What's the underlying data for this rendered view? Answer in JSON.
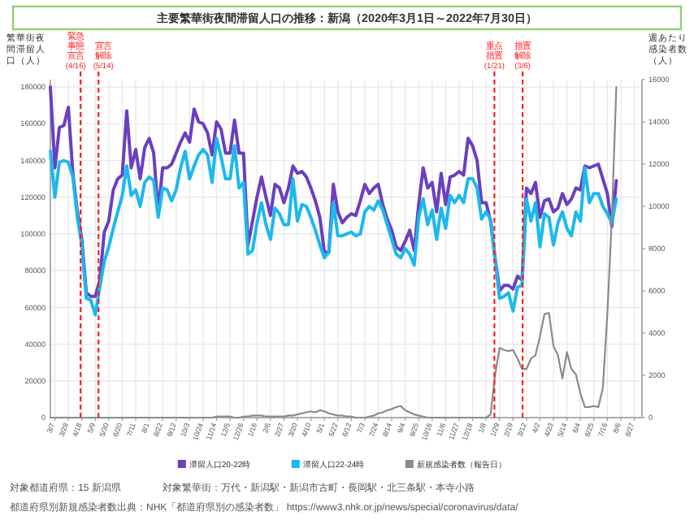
{
  "chart_data": {
    "type": "line",
    "title": "主要繁華街夜間滞留人口の推移：新潟（2020年3月1日～2022年7月30日）",
    "ylabel": "繁華街夜間滞留人口（人）",
    "y2label": "週あたり感染者数（人）",
    "annotations": [
      "対象都道府県：15 新潟県",
      "対象繁華街：万代・新潟駅・新潟市古町・長岡駅・北三条駅・本寺小路",
      "都道府県別新規感染者数出典：NHK「都道府県別の感染者数」 https://www3.nhk.or.jp/news/special/coronavirus/data/"
    ],
    "x": [
      "2020-02-29",
      "2020-03-07",
      "2020-03-14",
      "2020-03-21",
      "2020-03-28",
      "2020-04-04",
      "2020-04-11",
      "2020-04-18",
      "2020-04-25",
      "2020-05-02",
      "2020-05-09",
      "2020-05-16",
      "2020-05-23",
      "2020-05-30",
      "2020-06-06",
      "2020-06-13",
      "2020-06-20",
      "2020-06-27",
      "2020-07-04",
      "2020-07-11",
      "2020-07-18",
      "2020-07-25",
      "2020-08-01",
      "2020-08-08",
      "2020-08-15",
      "2020-08-22",
      "2020-08-29",
      "2020-09-05",
      "2020-09-12",
      "2020-09-19",
      "2020-09-26",
      "2020-10-03",
      "2020-10-10",
      "2020-10-17",
      "2020-10-24",
      "2020-10-31",
      "2020-11-07",
      "2020-11-14",
      "2020-11-21",
      "2020-11-28",
      "2020-12-05",
      "2020-12-12",
      "2020-12-19",
      "2020-12-26",
      "2021-01-02",
      "2021-01-09",
      "2021-01-16",
      "2021-01-23",
      "2021-01-30",
      "2021-02-06",
      "2021-02-13",
      "2021-02-20",
      "2021-02-27",
      "2021-03-06",
      "2021-03-13",
      "2021-03-20",
      "2021-03-27",
      "2021-04-03",
      "2021-04-10",
      "2021-04-17",
      "2021-04-24",
      "2021-05-01",
      "2021-05-08",
      "2021-05-15",
      "2021-05-22",
      "2021-05-29",
      "2021-06-05",
      "2021-06-12",
      "2021-06-19",
      "2021-06-26",
      "2021-07-03",
      "2021-07-10",
      "2021-07-17",
      "2021-07-24",
      "2021-07-31",
      "2021-08-07",
      "2021-08-14",
      "2021-08-21",
      "2021-08-28",
      "2021-09-04",
      "2021-09-11",
      "2021-09-18",
      "2021-09-25",
      "2021-10-02",
      "2021-10-09",
      "2021-10-16",
      "2021-10-23",
      "2021-10-30",
      "2021-11-06",
      "2021-11-13",
      "2021-11-20",
      "2021-11-27",
      "2021-12-04",
      "2021-12-11",
      "2021-12-18",
      "2021-12-25",
      "2022-01-01",
      "2022-01-08",
      "2022-01-15",
      "2022-01-22",
      "2022-01-29",
      "2022-02-05",
      "2022-02-12",
      "2022-02-19",
      "2022-02-26",
      "2022-03-05",
      "2022-03-12",
      "2022-03-19",
      "2022-03-26",
      "2022-04-02",
      "2022-04-09",
      "2022-04-16",
      "2022-04-23",
      "2022-04-30",
      "2022-05-07",
      "2022-05-14",
      "2022-05-21",
      "2022-05-28",
      "2022-06-04",
      "2022-06-11",
      "2022-06-18",
      "2022-06-25",
      "2022-07-02",
      "2022-07-09",
      "2022-07-16",
      "2022-07-23",
      "2022-07-30"
    ],
    "series": [
      {
        "name": "滞留人口20-22時",
        "color": "#6b3fbf",
        "values": [
          180000,
          136000,
          158000,
          159000,
          169000,
          133000,
          112000,
          97000,
          68000,
          66000,
          66000,
          75000,
          101000,
          107000,
          124000,
          130000,
          132000,
          167000,
          136000,
          146000,
          130000,
          147000,
          152000,
          144000,
          112000,
          136000,
          136000,
          138000,
          144000,
          150000,
          155000,
          150000,
          168000,
          161000,
          160000,
          155000,
          143000,
          161000,
          157000,
          144000,
          144000,
          162000,
          144000,
          144000,
          94000,
          107000,
          120000,
          131000,
          120000,
          110000,
          127000,
          125000,
          117000,
          125000,
          137000,
          133000,
          134000,
          131000,
          125000,
          118000,
          109000,
          90000,
          90000,
          127000,
          112000,
          106000,
          109000,
          111000,
          110000,
          118000,
          127000,
          122000,
          125000,
          127000,
          116000,
          108000,
          102000,
          93000,
          91000,
          96000,
          102000,
          91000,
          116000,
          136000,
          125000,
          128000,
          112000,
          133000,
          116000,
          131000,
          132000,
          134000,
          132000,
          152000,
          148000,
          140000,
          117000,
          117000,
          107000,
          87000,
          69000,
          72000,
          72000,
          70000,
          77000,
          75000,
          125000,
          122000,
          128000,
          109000,
          118000,
          119000,
          112000,
          114000,
          122000,
          116000,
          119000,
          125000,
          124000,
          137000,
          136000,
          137000,
          138000,
          130000,
          122000,
          104000,
          129000
        ]
      },
      {
        "name": "滞留人口22-24時",
        "color": "#1cb8ee",
        "values": [
          145000,
          120000,
          139000,
          140000,
          139000,
          131000,
          109000,
          94000,
          65000,
          64000,
          56000,
          71000,
          85000,
          93000,
          103000,
          112000,
          121000,
          137000,
          121000,
          124000,
          115000,
          128000,
          131000,
          129000,
          109000,
          125000,
          124000,
          118000,
          124000,
          136000,
          145000,
          130000,
          137000,
          143000,
          146000,
          143000,
          128000,
          152000,
          142000,
          130000,
          130000,
          148000,
          125000,
          128000,
          89000,
          91000,
          106000,
          117000,
          105000,
          97000,
          114000,
          111000,
          105000,
          105000,
          130000,
          107000,
          116000,
          115000,
          109000,
          102000,
          94000,
          87000,
          90000,
          117000,
          99000,
          99000,
          100000,
          101000,
          99000,
          100000,
          112000,
          115000,
          113000,
          118000,
          113000,
          105000,
          97000,
          89000,
          87000,
          92000,
          89000,
          83000,
          109000,
          119000,
          105000,
          113000,
          97000,
          114000,
          103000,
          121000,
          117000,
          121000,
          117000,
          130000,
          130000,
          125000,
          108000,
          112000,
          108000,
          86000,
          65000,
          66000,
          68000,
          58000,
          71000,
          72000,
          119000,
          107000,
          117000,
          93000,
          111000,
          109000,
          94000,
          106000,
          112000,
          103000,
          99000,
          112000,
          107000,
          136000,
          117000,
          122000,
          122000,
          115000,
          111000,
          106000,
          119000
        ]
      },
      {
        "name": "新規感染者数（報告日）",
        "color": "#858c94",
        "axis": "y2",
        "values": [
          0,
          0,
          0,
          0,
          0,
          0,
          0,
          0,
          0,
          0,
          0,
          0,
          0,
          0,
          0,
          0,
          0,
          0,
          0,
          0,
          0,
          0,
          0,
          0,
          0,
          0,
          0,
          0,
          0,
          0,
          0,
          0,
          0,
          0,
          0,
          0,
          0,
          50,
          50,
          50,
          50,
          0,
          0,
          50,
          50,
          100,
          100,
          100,
          50,
          50,
          50,
          50,
          50,
          100,
          100,
          150,
          200,
          250,
          300,
          250,
          350,
          300,
          200,
          150,
          100,
          100,
          50,
          50,
          0,
          0,
          0,
          50,
          100,
          200,
          250,
          350,
          400,
          500,
          550,
          350,
          250,
          150,
          100,
          50,
          0,
          0,
          0,
          0,
          0,
          0,
          0,
          0,
          0,
          0,
          0,
          0,
          0,
          0,
          150,
          2000,
          3300,
          3200,
          3150,
          3200,
          2800,
          2300,
          2300,
          2800,
          2950,
          3850,
          4900,
          4950,
          3400,
          2950,
          1850,
          3100,
          2300,
          2050,
          1150,
          500,
          500,
          550,
          500,
          1400,
          4900,
          9400,
          15650
        ]
      }
    ],
    "xlim": [
      "2020-02-29",
      "2022-09-08"
    ],
    "xticks": [
      {
        "value": "2020-03-07",
        "label": "3/7"
      },
      {
        "value": "2020-03-28",
        "label": "3/28"
      },
      {
        "value": "2020-04-18",
        "label": "4/18"
      },
      {
        "value": "2020-05-09",
        "label": "5/9"
      },
      {
        "value": "2020-05-30",
        "label": "5/30"
      },
      {
        "value": "2020-06-20",
        "label": "6/20"
      },
      {
        "value": "2020-07-11",
        "label": "7/11"
      },
      {
        "value": "2020-08-01",
        "label": "8/1"
      },
      {
        "value": "2020-08-22",
        "label": "8/22"
      },
      {
        "value": "2020-09-12",
        "label": "9/12"
      },
      {
        "value": "2020-10-03",
        "label": "10/3"
      },
      {
        "value": "2020-10-24",
        "label": "10/24"
      },
      {
        "value": "2020-11-14",
        "label": "11/14"
      },
      {
        "value": "2020-12-05",
        "label": "12/5"
      },
      {
        "value": "2020-12-26",
        "label": "12/26"
      },
      {
        "value": "2021-01-16",
        "label": "1/16"
      },
      {
        "value": "2021-02-06",
        "label": "2/6"
      },
      {
        "value": "2021-02-27",
        "label": "2/27"
      },
      {
        "value": "2021-03-20",
        "label": "3/20"
      },
      {
        "value": "2021-04-10",
        "label": "4/10"
      },
      {
        "value": "2021-05-01",
        "label": "5/1"
      },
      {
        "value": "2021-05-22",
        "label": "5/22"
      },
      {
        "value": "2021-06-12",
        "label": "6/12"
      },
      {
        "value": "2021-07-03",
        "label": "7/3"
      },
      {
        "value": "2021-07-24",
        "label": "7/24"
      },
      {
        "value": "2021-08-14",
        "label": "8/14"
      },
      {
        "value": "2021-09-04",
        "label": "9/4"
      },
      {
        "value": "2021-09-25",
        "label": "9/25"
      },
      {
        "value": "2021-10-16",
        "label": "10/16"
      },
      {
        "value": "2021-11-06",
        "label": "11/6"
      },
      {
        "value": "2021-11-27",
        "label": "11/27"
      },
      {
        "value": "2021-12-18",
        "label": "12/18"
      },
      {
        "value": "2022-01-08",
        "label": "1/8"
      },
      {
        "value": "2022-01-29",
        "label": "1/29"
      },
      {
        "value": "2022-02-19",
        "label": "2/19"
      },
      {
        "value": "2022-03-12",
        "label": "3/12"
      },
      {
        "value": "2022-04-02",
        "label": "4/2"
      },
      {
        "value": "2022-04-23",
        "label": "4/23"
      },
      {
        "value": "2022-05-14",
        "label": "5/14"
      },
      {
        "value": "2022-06-04",
        "label": "6/4"
      },
      {
        "value": "2022-06-25",
        "label": "6/25"
      },
      {
        "value": "2022-07-16",
        "label": "7/16"
      },
      {
        "value": "2022-08-06",
        "label": "8/6"
      },
      {
        "value": "2022-08-27",
        "label": "8/27"
      }
    ],
    "ylim": [
      0,
      184000
    ],
    "yticks": [
      0,
      20000,
      40000,
      60000,
      80000,
      100000,
      120000,
      140000,
      160000,
      180000
    ],
    "y2lim": [
      0,
      16000
    ],
    "y2ticks": [
      0,
      2000,
      4000,
      6000,
      8000,
      10000,
      12000,
      14000,
      16000
    ],
    "ref_lines": [
      {
        "axis": "x",
        "value": "2020-04-16",
        "label": "緊急事態宣言(4/16)",
        "color": "#ff2020",
        "line_style": "dashed"
      },
      {
        "axis": "x",
        "value": "2020-05-14",
        "label": "宣言解除(5/14)",
        "color": "#ff2020",
        "line_style": "dashed"
      },
      {
        "axis": "x",
        "value": "2022-01-21",
        "label": "重点措置(1/21)",
        "color": "#ff2020",
        "line_style": "dashed"
      },
      {
        "axis": "x",
        "value": "2022-03-06",
        "label": "措置解除(3/6)",
        "color": "#ff2020",
        "line_style": "dashed"
      }
    ],
    "grid": true,
    "legend": "bottom"
  }
}
